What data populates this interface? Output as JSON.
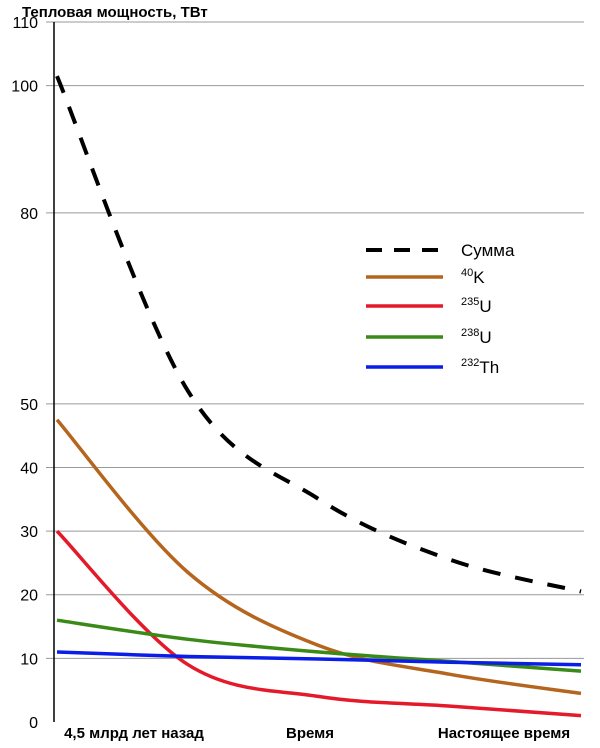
{
  "chart_data": {
    "type": "line",
    "ylabel": "Тепловая мощность, ТВт",
    "xlabel": "Время",
    "x_tick_labels": [
      "4,5 млрд лет назад",
      "Время",
      "Настоящее время"
    ],
    "x": [
      0,
      0.25,
      0.5,
      0.75,
      1.0
    ],
    "ylim": [
      0,
      110
    ],
    "y_ticks": [
      0,
      10,
      20,
      30,
      40,
      50,
      80,
      100,
      110
    ],
    "grid": true,
    "legend_position": "right",
    "series": [
      {
        "name": "Сумма",
        "sup": "",
        "label": "Сумма",
        "color": "#000000",
        "dashed": true,
        "values": [
          101.5,
          52,
          35,
          25.5,
          20.5
        ]
      },
      {
        "name": "40K",
        "sup": "40",
        "label": "K",
        "color": "#b5651d",
        "dashed": false,
        "values": [
          47.5,
          23.5,
          12,
          7.5,
          4.5
        ]
      },
      {
        "name": "235U",
        "sup": "235",
        "label": "U",
        "color": "#e41a2b",
        "dashed": false,
        "values": [
          30,
          9,
          4,
          2.5,
          1
        ]
      },
      {
        "name": "238U",
        "sup": "238",
        "label": "U",
        "color": "#3a8a18",
        "dashed": false,
        "values": [
          16,
          13,
          11,
          9.5,
          8
        ]
      },
      {
        "name": "232Th",
        "sup": "232",
        "label": "Th",
        "color": "#0a1ee8",
        "dashed": false,
        "values": [
          11,
          10.3,
          9.9,
          9.4,
          9
        ]
      }
    ]
  }
}
